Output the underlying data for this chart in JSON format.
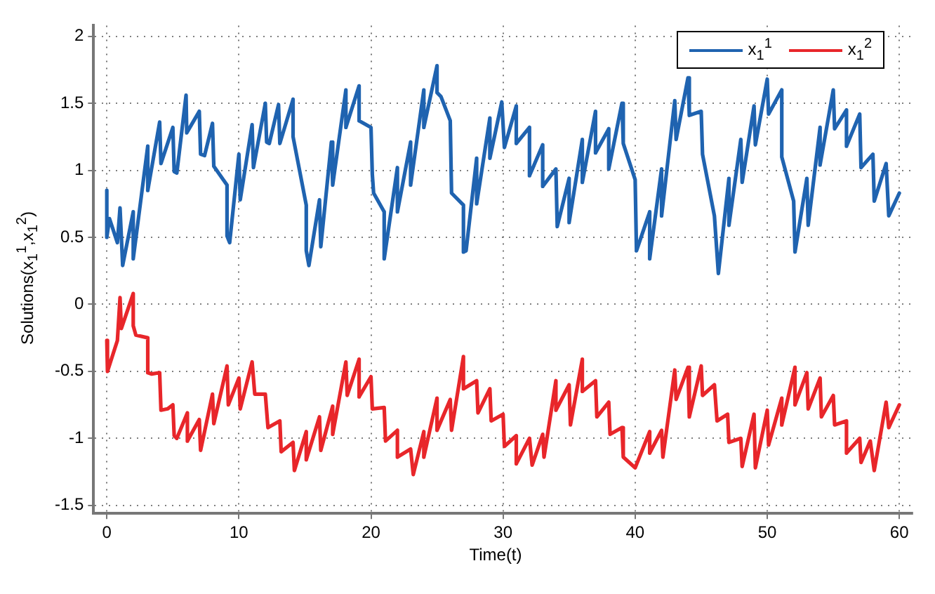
{
  "chart_data": {
    "type": "line",
    "xlabel": "Time(t)",
    "ylabel": "Solutions(x$_{1}$$^{1}$,x$_{1}$$^{2}$)",
    "xlim": [
      -1,
      61
    ],
    "ylim": [
      -1.56,
      2.08
    ],
    "xticks": [
      0,
      10,
      20,
      30,
      40,
      50,
      60
    ],
    "yticks": [
      -1.5,
      -1,
      -0.5,
      0,
      0.5,
      1,
      1.5,
      2
    ],
    "grid": true,
    "legend": "top right",
    "marker": "none",
    "line_style": "solid",
    "series": [
      {
        "name": "x$_{1}$$^{1}$",
        "color": "#1f63b0",
        "x": [
          0,
          0,
          0.2,
          0.8,
          1,
          1.2,
          2,
          2,
          3.1,
          3.1,
          4,
          4.1,
          5,
          5.1,
          5.3,
          6,
          6.05,
          7,
          7.1,
          7.4,
          8,
          8.1,
          9.1,
          9.1,
          9.3,
          10,
          10.1,
          11,
          11.1,
          12,
          12.1,
          12.3,
          13,
          13.1,
          14.1,
          14.1,
          15.1,
          15.1,
          15.3,
          16.1,
          16.2,
          17,
          17.1,
          18.1,
          18.1,
          19.1,
          19.1,
          20,
          20.1,
          20.2,
          21,
          21,
          22,
          22,
          23,
          23,
          24,
          24,
          25,
          25,
          25.3,
          26,
          26.1,
          27,
          27,
          27.2,
          28,
          28,
          29,
          29,
          29.9,
          30.1,
          31,
          31,
          32,
          32,
          33,
          33,
          34,
          34.1,
          35,
          35,
          36,
          36,
          37,
          37,
          38,
          38,
          39,
          39.1,
          40,
          40.1,
          41.1,
          41.1,
          42,
          42,
          43,
          43.1,
          44,
          44.1,
          45,
          45.1,
          46,
          46.3,
          47.1,
          47.1,
          48,
          48.1,
          49,
          49.1,
          50,
          50.1,
          51.1,
          51.1,
          52,
          52.1,
          53,
          53.1,
          54,
          54,
          55,
          55.1,
          56,
          56,
          57,
          57.1,
          58,
          58.1,
          59,
          59.2,
          60
        ],
        "values": [
          0.85,
          0.5,
          0.64,
          0.46,
          0.72,
          0.29,
          0.69,
          0.34,
          1.18,
          0.85,
          1.36,
          1.05,
          1.32,
          0.99,
          0.98,
          1.56,
          1.28,
          1.44,
          1.12,
          1.11,
          1.35,
          1.03,
          0.89,
          0.51,
          0.46,
          1.12,
          0.78,
          1.34,
          1.02,
          1.5,
          1.21,
          1.2,
          1.49,
          1.2,
          1.53,
          1.25,
          0.74,
          0.4,
          0.29,
          0.78,
          0.43,
          1.21,
          0.89,
          1.6,
          1.32,
          1.63,
          1.37,
          1.32,
          0.97,
          0.83,
          0.69,
          0.34,
          1.02,
          0.69,
          1.21,
          0.89,
          1.6,
          1.32,
          1.78,
          1.58,
          1.55,
          1.37,
          0.83,
          0.74,
          0.39,
          0.4,
          1.09,
          0.75,
          1.39,
          1.09,
          1.51,
          1.17,
          1.48,
          1.2,
          1.32,
          0.96,
          1.19,
          0.88,
          1.01,
          0.58,
          0.94,
          0.61,
          1.23,
          0.91,
          1.44,
          1.13,
          1.31,
          1.01,
          1.5,
          1.2,
          0.93,
          0.4,
          0.69,
          0.34,
          1.01,
          0.66,
          1.52,
          1.23,
          1.69,
          1.41,
          1.44,
          1.12,
          0.66,
          0.23,
          0.94,
          0.59,
          1.23,
          0.91,
          1.48,
          1.19,
          1.68,
          1.42,
          1.6,
          1.1,
          0.77,
          0.39,
          0.94,
          0.59,
          1.32,
          1.04,
          1.6,
          1.31,
          1.45,
          1.18,
          1.42,
          1.02,
          1.12,
          0.77,
          1.05,
          0.66,
          0.83
        ]
      },
      {
        "name": "x$_{1}$$^{2}$",
        "color": "#e8262a",
        "x": [
          0,
          0.05,
          0.8,
          1,
          1.1,
          2,
          2,
          2.2,
          3.1,
          3.1,
          3.4,
          4,
          4.1,
          4.6,
          5,
          5.1,
          5.3,
          6.1,
          6.1,
          7,
          7.1,
          8,
          8.1,
          9.1,
          9.2,
          10,
          10.1,
          11,
          11.2,
          12,
          12.2,
          13.1,
          13.2,
          14.1,
          14.2,
          15.1,
          15.1,
          16.1,
          16.2,
          17.1,
          17.1,
          18.1,
          18.2,
          19.1,
          19.1,
          20,
          20.1,
          21,
          21.1,
          22,
          22,
          23,
          23.2,
          24,
          24,
          25,
          25,
          26,
          26.1,
          27,
          27,
          28,
          28.1,
          29,
          29.1,
          30,
          30.1,
          31,
          31,
          32,
          32.2,
          33,
          33.1,
          34,
          34,
          35,
          35.1,
          36,
          36,
          37,
          37.1,
          38,
          38.1,
          39,
          39.1,
          40,
          41.1,
          41.1,
          42,
          42.1,
          43,
          43.1,
          44,
          44.1,
          45,
          45.1,
          46,
          46.2,
          47,
          47.1,
          48,
          48.1,
          49,
          49.1,
          50,
          50.1,
          51.1,
          51.1,
          52.1,
          52.1,
          53,
          53.1,
          54,
          54.1,
          55,
          55.1,
          56,
          56,
          57,
          57.1,
          57.8,
          58.1,
          59,
          59.2,
          60
        ],
        "values": [
          -0.27,
          -0.5,
          -0.27,
          0.05,
          -0.18,
          0.08,
          -0.16,
          -0.23,
          -0.25,
          -0.51,
          -0.52,
          -0.51,
          -0.79,
          -0.78,
          -0.75,
          -0.98,
          -1,
          -0.81,
          -1.02,
          -0.86,
          -1.09,
          -0.67,
          -0.89,
          -0.46,
          -0.75,
          -0.55,
          -0.78,
          -0.43,
          -0.67,
          -0.67,
          -0.92,
          -0.87,
          -1.1,
          -1.03,
          -1.24,
          -0.95,
          -1.16,
          -0.84,
          -1.09,
          -0.76,
          -0.97,
          -0.43,
          -0.68,
          -0.41,
          -0.69,
          -0.54,
          -0.78,
          -0.77,
          -1.02,
          -0.94,
          -1.14,
          -1.08,
          -1.27,
          -0.95,
          -1.14,
          -0.7,
          -0.94,
          -0.71,
          -0.94,
          -0.39,
          -0.63,
          -0.57,
          -0.81,
          -0.63,
          -0.87,
          -0.82,
          -1.06,
          -0.98,
          -1.19,
          -1,
          -1.2,
          -0.97,
          -1.14,
          -0.57,
          -0.79,
          -0.6,
          -0.9,
          -0.41,
          -0.65,
          -0.57,
          -0.84,
          -0.73,
          -0.97,
          -0.92,
          -1.14,
          -1.22,
          -0.95,
          -1.11,
          -0.94,
          -1.14,
          -0.49,
          -0.71,
          -0.47,
          -0.84,
          -0.46,
          -0.68,
          -0.6,
          -0.87,
          -0.82,
          -1.03,
          -1,
          -1.21,
          -0.82,
          -1.22,
          -0.79,
          -1.05,
          -0.7,
          -0.9,
          -0.47,
          -0.75,
          -0.51,
          -0.78,
          -0.55,
          -0.84,
          -0.68,
          -0.9,
          -0.87,
          -1.11,
          -1,
          -1.18,
          -1.02,
          -1.24,
          -0.73,
          -0.92,
          -0.75
        ]
      }
    ]
  }
}
